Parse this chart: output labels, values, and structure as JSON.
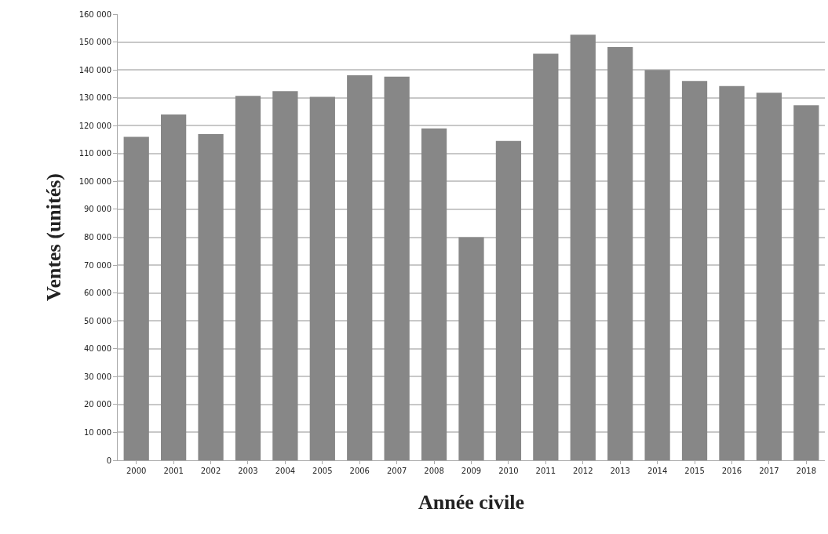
{
  "chart_data": {
    "type": "bar",
    "xlabel": "Année civile",
    "ylabel": "Ventes (unités)",
    "categories": [
      "2000",
      "2001",
      "2002",
      "2003",
      "2004",
      "2005",
      "2006",
      "2007",
      "2008",
      "2009",
      "2010",
      "2011",
      "2012",
      "2013",
      "2014",
      "2015",
      "2016",
      "2017",
      "2018"
    ],
    "values": [
      116000,
      124000,
      117000,
      130700,
      132400,
      130300,
      138100,
      137600,
      119000,
      80000,
      114500,
      145800,
      152600,
      148200,
      140000,
      136000,
      134200,
      131800,
      127300
    ],
    "color": "#878787",
    "ylim": [
      0,
      160000
    ],
    "yticks": [
      {
        "value": 0,
        "label": "0"
      },
      {
        "value": 10000,
        "label": "10 000"
      },
      {
        "value": 20000,
        "label": "20 000"
      },
      {
        "value": 30000,
        "label": "30 000"
      },
      {
        "value": 40000,
        "label": "40 000"
      },
      {
        "value": 50000,
        "label": "50 000"
      },
      {
        "value": 60000,
        "label": "60 000"
      },
      {
        "value": 70000,
        "label": "70 000"
      },
      {
        "value": 80000,
        "label": "80 000"
      },
      {
        "value": 90000,
        "label": "90 000"
      },
      {
        "value": 100000,
        "label": "100 000"
      },
      {
        "value": 110000,
        "label": "110 000"
      },
      {
        "value": 120000,
        "label": "120 000"
      },
      {
        "value": 130000,
        "label": "130 000"
      },
      {
        "value": 140000,
        "label": "140 000"
      },
      {
        "value": 150000,
        "label": "150 000"
      },
      {
        "value": 160000,
        "label": "160 000"
      }
    ],
    "grid": "y"
  }
}
